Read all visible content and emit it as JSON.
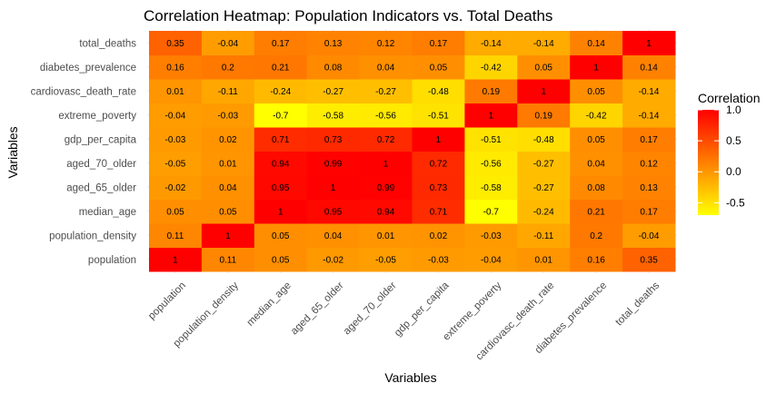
{
  "chart_data": {
    "type": "heatmap",
    "title": "Correlation Heatmap: Population Indicators vs. Total Deaths",
    "xlabel": "Variables",
    "ylabel": "Variables",
    "x_categories": [
      "population",
      "population_density",
      "median_age",
      "aged_65_older",
      "aged_70_older",
      "gdp_per_capita",
      "extreme_poverty",
      "cardiovasc_death_rate",
      "diabetes_prevalence",
      "total_deaths"
    ],
    "y_categories": [
      "population",
      "population_density",
      "median_age",
      "aged_65_older",
      "aged_70_older",
      "gdp_per_capita",
      "extreme_poverty",
      "cardiovasc_death_rate",
      "diabetes_prevalence",
      "total_deaths"
    ],
    "values": [
      [
        1,
        0.11,
        0.05,
        -0.02,
        -0.05,
        -0.03,
        -0.04,
        0.01,
        0.16,
        0.35
      ],
      [
        0.11,
        1,
        0.05,
        0.04,
        0.01,
        0.02,
        -0.03,
        -0.11,
        0.2,
        -0.04
      ],
      [
        0.05,
        0.05,
        1,
        0.95,
        0.94,
        0.71,
        -0.7,
        -0.24,
        0.21,
        0.17
      ],
      [
        -0.02,
        0.04,
        0.95,
        1,
        0.99,
        0.73,
        -0.58,
        -0.27,
        0.08,
        0.13
      ],
      [
        -0.05,
        0.01,
        0.94,
        0.99,
        1,
        0.72,
        -0.56,
        -0.27,
        0.04,
        0.12
      ],
      [
        -0.03,
        0.02,
        0.71,
        0.73,
        0.72,
        1,
        -0.51,
        -0.48,
        0.05,
        0.17
      ],
      [
        -0.04,
        -0.03,
        -0.7,
        -0.58,
        -0.56,
        -0.51,
        1,
        0.19,
        -0.42,
        -0.14
      ],
      [
        0.01,
        -0.11,
        -0.24,
        -0.27,
        -0.27,
        -0.48,
        0.19,
        1,
        0.05,
        -0.14
      ],
      [
        0.16,
        0.2,
        0.21,
        0.08,
        0.04,
        0.05,
        -0.42,
        0.05,
        1,
        0.14
      ],
      [
        0.35,
        -0.04,
        0.17,
        0.13,
        0.12,
        0.17,
        -0.14,
        -0.14,
        0.14,
        1
      ]
    ],
    "color_scale": {
      "low": "#ffff00",
      "high": "#ff0000",
      "min": -0.7,
      "max": 1
    },
    "legend": {
      "title": "Correlation",
      "ticks": [
        "1.0",
        "0.5",
        "0.0",
        "-0.5"
      ],
      "tick_values": [
        1.0,
        0.5,
        0.0,
        -0.5
      ],
      "placement": "right"
    },
    "grid": true
  }
}
